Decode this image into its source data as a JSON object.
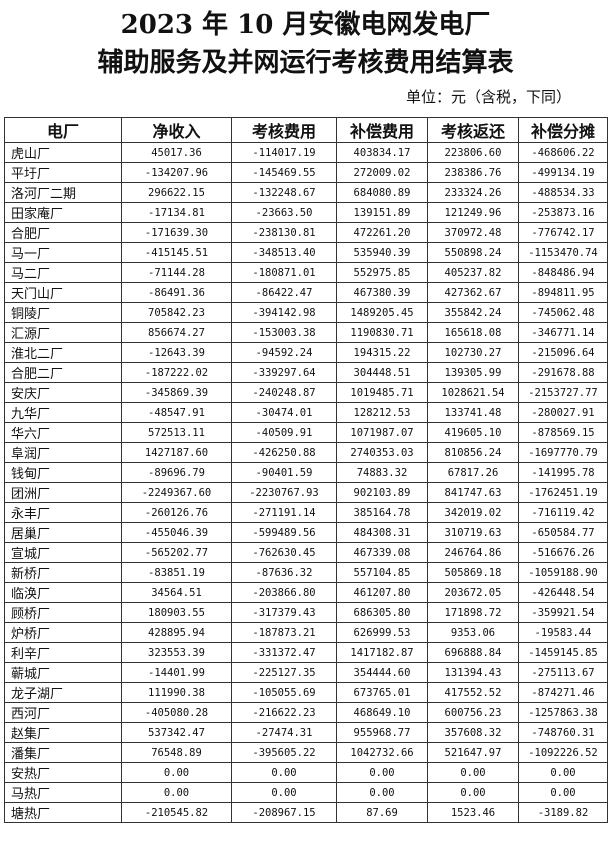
{
  "title_line1": "2023 年 10 月安徽电网发电厂",
  "title_line2": "辅助服务及并网运行考核费用结算表",
  "unit": "单位：元（含税，下同）",
  "columns": [
    "电厂",
    "净收入",
    "考核费用",
    "补偿费用",
    "考核返还",
    "补偿分摊"
  ],
  "rows": [
    [
      "虎山厂",
      "45017.36",
      "-114017.19",
      "403834.17",
      "223806.60",
      "-468606.22"
    ],
    [
      "平圩厂",
      "-134207.96",
      "-145469.55",
      "272009.02",
      "238386.76",
      "-499134.19"
    ],
    [
      "洛河厂二期",
      "296622.15",
      "-132248.67",
      "684080.89",
      "233324.26",
      "-488534.33"
    ],
    [
      "田家庵厂",
      "-17134.81",
      "-23663.50",
      "139151.89",
      "121249.96",
      "-253873.16"
    ],
    [
      "合肥厂",
      "-171639.30",
      "-238130.81",
      "472261.20",
      "370972.48",
      "-776742.17"
    ],
    [
      "马一厂",
      "-415145.51",
      "-348513.40",
      "535940.39",
      "550898.24",
      "-1153470.74"
    ],
    [
      "马二厂",
      "-71144.28",
      "-180871.01",
      "552975.85",
      "405237.82",
      "-848486.94"
    ],
    [
      "天门山厂",
      "-86491.36",
      "-86422.47",
      "467380.39",
      "427362.67",
      "-894811.95"
    ],
    [
      "铜陵厂",
      "705842.23",
      "-394142.98",
      "1489205.45",
      "355842.24",
      "-745062.48"
    ],
    [
      "汇源厂",
      "856674.27",
      "-153003.38",
      "1190830.71",
      "165618.08",
      "-346771.14"
    ],
    [
      "淮北二厂",
      "-12643.39",
      "-94592.24",
      "194315.22",
      "102730.27",
      "-215096.64"
    ],
    [
      "合肥二厂",
      "-187222.02",
      "-339297.64",
      "304448.51",
      "139305.99",
      "-291678.88"
    ],
    [
      "安庆厂",
      "-345869.39",
      "-240248.87",
      "1019485.71",
      "1028621.54",
      "-2153727.77"
    ],
    [
      "九华厂",
      "-48547.91",
      "-30474.01",
      "128212.53",
      "133741.48",
      "-280027.91"
    ],
    [
      "华六厂",
      "572513.11",
      "-40509.91",
      "1071987.07",
      "419605.10",
      "-878569.15"
    ],
    [
      "阜润厂",
      "1427187.60",
      "-426250.88",
      "2740353.03",
      "810856.24",
      "-1697770.79"
    ],
    [
      "钱甸厂",
      "-89696.79",
      "-90401.59",
      "74883.32",
      "67817.26",
      "-141995.78"
    ],
    [
      "团洲厂",
      "-2249367.60",
      "-2230767.93",
      "902103.89",
      "841747.63",
      "-1762451.19"
    ],
    [
      "永丰厂",
      "-260126.76",
      "-271191.14",
      "385164.78",
      "342019.02",
      "-716119.42"
    ],
    [
      "居巢厂",
      "-455046.39",
      "-599489.56",
      "484308.31",
      "310719.63",
      "-650584.77"
    ],
    [
      "宣城厂",
      "-565202.77",
      "-762630.45",
      "467339.08",
      "246764.86",
      "-516676.26"
    ],
    [
      "新桥厂",
      "-83851.19",
      "-87636.32",
      "557104.85",
      "505869.18",
      "-1059188.90"
    ],
    [
      "临涣厂",
      "34564.51",
      "-203866.80",
      "461207.80",
      "203672.05",
      "-426448.54"
    ],
    [
      "顾桥厂",
      "180903.55",
      "-317379.43",
      "686305.80",
      "171898.72",
      "-359921.54"
    ],
    [
      "炉桥厂",
      "428895.94",
      "-187873.21",
      "626999.53",
      "9353.06",
      "-19583.44"
    ],
    [
      "利辛厂",
      "323553.39",
      "-331372.47",
      "1417182.87",
      "696888.84",
      "-1459145.85"
    ],
    [
      "蕲城厂",
      "-14401.99",
      "-225127.35",
      "354444.60",
      "131394.43",
      "-275113.67"
    ],
    [
      "龙子湖厂",
      "111990.38",
      "-105055.69",
      "673765.01",
      "417552.52",
      "-874271.46"
    ],
    [
      "西河厂",
      "-405080.28",
      "-216622.23",
      "468649.10",
      "600756.23",
      "-1257863.38"
    ],
    [
      "赵集厂",
      "537342.47",
      "-27474.31",
      "955968.77",
      "357608.32",
      "-748760.31"
    ],
    [
      "潘集厂",
      "76548.89",
      "-395605.22",
      "1042732.66",
      "521647.97",
      "-1092226.52"
    ],
    [
      "安热厂",
      "0.00",
      "0.00",
      "0.00",
      "0.00",
      "0.00"
    ],
    [
      "马热厂",
      "0.00",
      "0.00",
      "0.00",
      "0.00",
      "0.00"
    ],
    [
      "塘热厂",
      "-210545.82",
      "-208967.15",
      "87.69",
      "1523.46",
      "-3189.82"
    ]
  ]
}
